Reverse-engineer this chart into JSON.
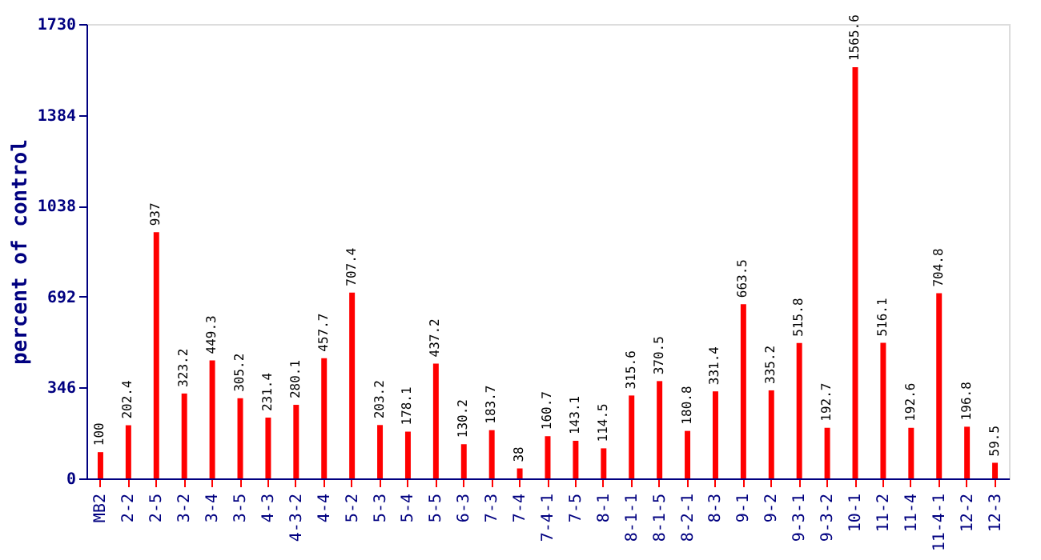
{
  "chart_data": {
    "type": "bar",
    "ylabel": "percent of control",
    "categories": [
      "MB2",
      "2-2",
      "2-5",
      "3-2",
      "3-4",
      "3-5",
      "4-3",
      "4-3-2",
      "4-4",
      "5-2",
      "5-3",
      "5-4",
      "5-5",
      "6-3",
      "7-3",
      "7-4",
      "7-4-1",
      "7-5",
      "8-1",
      "8-1-1",
      "8-1-5",
      "8-2-1",
      "8-3",
      "9-1",
      "9-2",
      "9-3-1",
      "9-3-2",
      "10-1",
      "11-2",
      "11-4",
      "11-4-1",
      "12-2",
      "12-3"
    ],
    "values": [
      100,
      202.4,
      937,
      323.2,
      449.3,
      305.2,
      231.4,
      280.1,
      457.7,
      707.4,
      203.2,
      178.1,
      437.2,
      130.2,
      183.7,
      38,
      160.7,
      143.1,
      114.5,
      315.6,
      370.5,
      180.8,
      331.4,
      663.5,
      335.2,
      515.8,
      192.7,
      1565.6,
      516.1,
      192.6,
      704.8,
      196.8,
      59.5
    ],
    "color": "#ff0000",
    "ylim": [
      0,
      1730
    ],
    "yticks": [
      0,
      346,
      692,
      1038,
      1384,
      1730
    ],
    "grid": false,
    "data_labels": true
  }
}
